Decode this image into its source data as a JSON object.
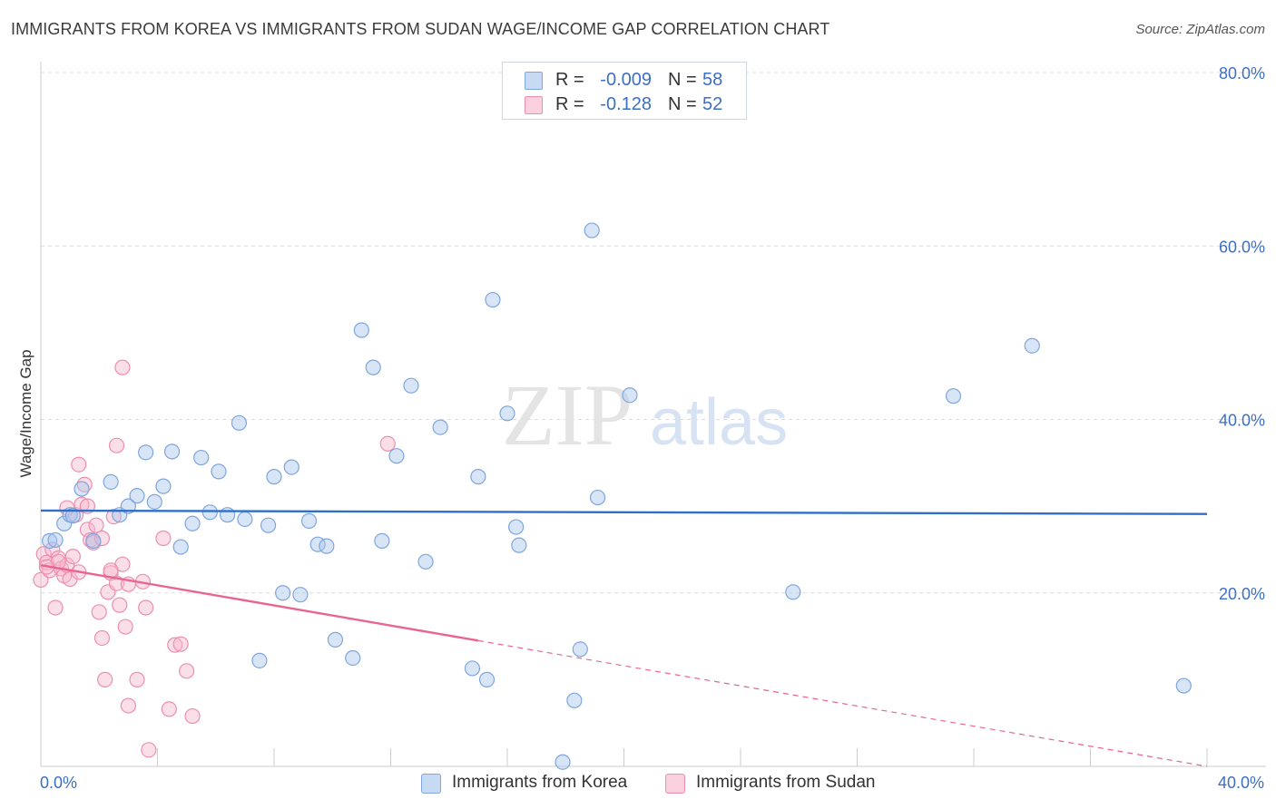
{
  "title": "IMMIGRANTS FROM KOREA VS IMMIGRANTS FROM SUDAN WAGE/INCOME GAP CORRELATION CHART",
  "source": "Source: ZipAtlas.com",
  "watermark": {
    "zip": "ZIP",
    "atlas": "atlas"
  },
  "legend": {
    "rows": [
      {
        "r_label": "R =",
        "r_value": "-0.009",
        "n_label": "N =",
        "n_value": "58",
        "color": "#a9c6ee"
      },
      {
        "r_label": "R =",
        "r_value": "-0.128",
        "n_label": "N =",
        "n_value": "52",
        "color": "#f6b8cc"
      }
    ]
  },
  "bottom_legend": [
    {
      "label": "Immigrants from Korea",
      "color": "#a9c6ee"
    },
    {
      "label": "Immigrants from Sudan",
      "color": "#f6b8cc"
    }
  ],
  "colors": {
    "korea_fill": "#a9c6ee",
    "korea_stroke": "#7ea6dc",
    "korea_line": "#2f6fc9",
    "sudan_fill": "#f6b8cc",
    "sudan_stroke": "#ec8fae",
    "sudan_line": "#e8658f",
    "axis_label": "#3c6fc4",
    "grid": "#dcdcdc"
  },
  "chart_data": {
    "type": "scatter",
    "title": "IMMIGRANTS FROM KOREA VS IMMIGRANTS FROM SUDAN WAGE/INCOME GAP CORRELATION CHART",
    "xlabel": "",
    "ylabel": "Wage/Income Gap",
    "xlim": [
      0,
      40
    ],
    "ylim": [
      0,
      80
    ],
    "x_tick_labels": [
      "0.0%",
      "40.0%"
    ],
    "y_ticks": [
      20,
      40,
      60,
      80
    ],
    "y_tick_labels": [
      "20.0%",
      "40.0%",
      "60.0%",
      "80.0%"
    ],
    "grid": true,
    "legend_position": "top-center",
    "series": [
      {
        "name": "Immigrants from Korea",
        "trend": {
          "x": [
            0,
            40
          ],
          "y": [
            29.5,
            29.1
          ],
          "dashed_from": null
        },
        "points": [
          {
            "x": 0.3,
            "y": 26.0
          },
          {
            "x": 0.8,
            "y": 28.0
          },
          {
            "x": 1.0,
            "y": 29.0
          },
          {
            "x": 1.4,
            "y": 32.0
          },
          {
            "x": 1.8,
            "y": 26.0
          },
          {
            "x": 2.4,
            "y": 32.8
          },
          {
            "x": 2.7,
            "y": 29.0
          },
          {
            "x": 3.0,
            "y": 30.0
          },
          {
            "x": 3.3,
            "y": 31.2
          },
          {
            "x": 3.6,
            "y": 36.2
          },
          {
            "x": 3.9,
            "y": 30.5
          },
          {
            "x": 4.2,
            "y": 32.3
          },
          {
            "x": 4.5,
            "y": 36.3
          },
          {
            "x": 4.8,
            "y": 25.3
          },
          {
            "x": 5.2,
            "y": 28.0
          },
          {
            "x": 5.5,
            "y": 35.6
          },
          {
            "x": 5.8,
            "y": 29.3
          },
          {
            "x": 6.1,
            "y": 34.0
          },
          {
            "x": 6.4,
            "y": 29.0
          },
          {
            "x": 6.8,
            "y": 39.6
          },
          {
            "x": 7.0,
            "y": 28.5
          },
          {
            "x": 7.5,
            "y": 12.2
          },
          {
            "x": 7.8,
            "y": 27.8
          },
          {
            "x": 8.0,
            "y": 33.4
          },
          {
            "x": 8.3,
            "y": 20.0
          },
          {
            "x": 8.6,
            "y": 34.5
          },
          {
            "x": 8.9,
            "y": 19.8
          },
          {
            "x": 9.2,
            "y": 28.3
          },
          {
            "x": 9.5,
            "y": 25.6
          },
          {
            "x": 9.8,
            "y": 25.4
          },
          {
            "x": 10.1,
            "y": 14.6
          },
          {
            "x": 10.7,
            "y": 12.5
          },
          {
            "x": 11.0,
            "y": 50.3
          },
          {
            "x": 11.4,
            "y": 46.0
          },
          {
            "x": 11.7,
            "y": 26.0
          },
          {
            "x": 12.2,
            "y": 35.8
          },
          {
            "x": 12.7,
            "y": 43.9
          },
          {
            "x": 13.2,
            "y": 23.6
          },
          {
            "x": 13.7,
            "y": 39.1
          },
          {
            "x": 14.8,
            "y": 11.3
          },
          {
            "x": 15.0,
            "y": 33.4
          },
          {
            "x": 15.3,
            "y": 10.0
          },
          {
            "x": 15.5,
            "y": 53.8
          },
          {
            "x": 16.0,
            "y": 40.7
          },
          {
            "x": 16.3,
            "y": 27.6
          },
          {
            "x": 16.4,
            "y": 25.5
          },
          {
            "x": 17.9,
            "y": 0.5
          },
          {
            "x": 18.3,
            "y": 7.6
          },
          {
            "x": 18.5,
            "y": 13.5
          },
          {
            "x": 18.9,
            "y": 61.8
          },
          {
            "x": 19.1,
            "y": 31.0
          },
          {
            "x": 20.2,
            "y": 42.8
          },
          {
            "x": 25.8,
            "y": 20.1
          },
          {
            "x": 31.3,
            "y": 42.7
          },
          {
            "x": 34.0,
            "y": 48.5
          },
          {
            "x": 39.2,
            "y": 9.3
          },
          {
            "x": 0.5,
            "y": 26.1
          },
          {
            "x": 1.1,
            "y": 28.9
          }
        ]
      },
      {
        "name": "Immigrants from Sudan",
        "trend": {
          "x": [
            0,
            40
          ],
          "y": [
            23.2,
            0.0
          ],
          "dashed_from": 15.0
        },
        "points": [
          {
            "x": 0.0,
            "y": 21.5
          },
          {
            "x": 0.1,
            "y": 24.5
          },
          {
            "x": 0.2,
            "y": 23.5
          },
          {
            "x": 0.3,
            "y": 22.6
          },
          {
            "x": 0.4,
            "y": 25.0
          },
          {
            "x": 0.5,
            "y": 18.3
          },
          {
            "x": 0.6,
            "y": 24.0
          },
          {
            "x": 0.7,
            "y": 22.8
          },
          {
            "x": 0.8,
            "y": 22.0
          },
          {
            "x": 0.9,
            "y": 23.2
          },
          {
            "x": 1.0,
            "y": 21.6
          },
          {
            "x": 1.1,
            "y": 24.2
          },
          {
            "x": 1.2,
            "y": 29.0
          },
          {
            "x": 1.3,
            "y": 34.8
          },
          {
            "x": 1.4,
            "y": 30.2
          },
          {
            "x": 1.5,
            "y": 32.5
          },
          {
            "x": 1.6,
            "y": 27.3
          },
          {
            "x": 1.7,
            "y": 26.1
          },
          {
            "x": 1.8,
            "y": 25.8
          },
          {
            "x": 1.9,
            "y": 27.8
          },
          {
            "x": 2.0,
            "y": 17.8
          },
          {
            "x": 2.1,
            "y": 14.8
          },
          {
            "x": 2.2,
            "y": 10.0
          },
          {
            "x": 2.3,
            "y": 20.1
          },
          {
            "x": 2.4,
            "y": 22.3
          },
          {
            "x": 2.5,
            "y": 28.8
          },
          {
            "x": 2.6,
            "y": 21.1
          },
          {
            "x": 2.7,
            "y": 18.6
          },
          {
            "x": 2.8,
            "y": 23.3
          },
          {
            "x": 2.9,
            "y": 16.1
          },
          {
            "x": 3.0,
            "y": 21.0
          },
          {
            "x": 3.3,
            "y": 10.0
          },
          {
            "x": 3.5,
            "y": 21.3
          },
          {
            "x": 3.6,
            "y": 18.3
          },
          {
            "x": 3.7,
            "y": 1.9
          },
          {
            "x": 4.2,
            "y": 26.3
          },
          {
            "x": 4.4,
            "y": 6.6
          },
          {
            "x": 4.6,
            "y": 14.0
          },
          {
            "x": 4.8,
            "y": 14.1
          },
          {
            "x": 5.0,
            "y": 11.0
          },
          {
            "x": 5.2,
            "y": 5.8
          },
          {
            "x": 2.8,
            "y": 46.0
          },
          {
            "x": 2.6,
            "y": 37.0
          },
          {
            "x": 3.0,
            "y": 7.0
          },
          {
            "x": 11.9,
            "y": 37.2
          },
          {
            "x": 0.9,
            "y": 29.8
          },
          {
            "x": 1.6,
            "y": 30.0
          },
          {
            "x": 0.6,
            "y": 23.6
          },
          {
            "x": 0.2,
            "y": 23.0
          },
          {
            "x": 1.3,
            "y": 22.4
          },
          {
            "x": 2.1,
            "y": 26.3
          },
          {
            "x": 2.4,
            "y": 22.6
          }
        ]
      }
    ]
  }
}
